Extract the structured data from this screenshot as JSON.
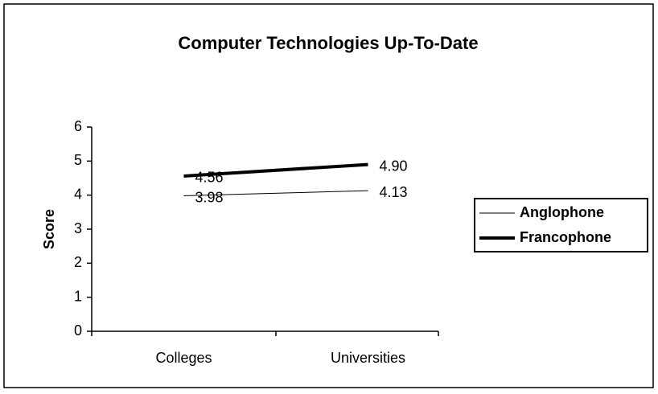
{
  "chart_data": {
    "type": "line",
    "title": "Computer Technologies Up-To-Date",
    "categories": [
      "Colleges",
      "Universities"
    ],
    "series": [
      {
        "name": "Anglophone",
        "color": "#000000",
        "width": 1,
        "values": [
          3.98,
          4.13
        ],
        "value_labels": [
          "3.98",
          "4.13"
        ]
      },
      {
        "name": "Francophone",
        "color": "#000000",
        "width": 4,
        "values": [
          4.56,
          4.9
        ],
        "value_labels": [
          "4.56",
          "4.90"
        ]
      }
    ],
    "ylabel": "Score",
    "ylim": [
      0,
      6
    ],
    "yticks": [
      0,
      1,
      2,
      3,
      4,
      5,
      6
    ],
    "legend": "right"
  }
}
